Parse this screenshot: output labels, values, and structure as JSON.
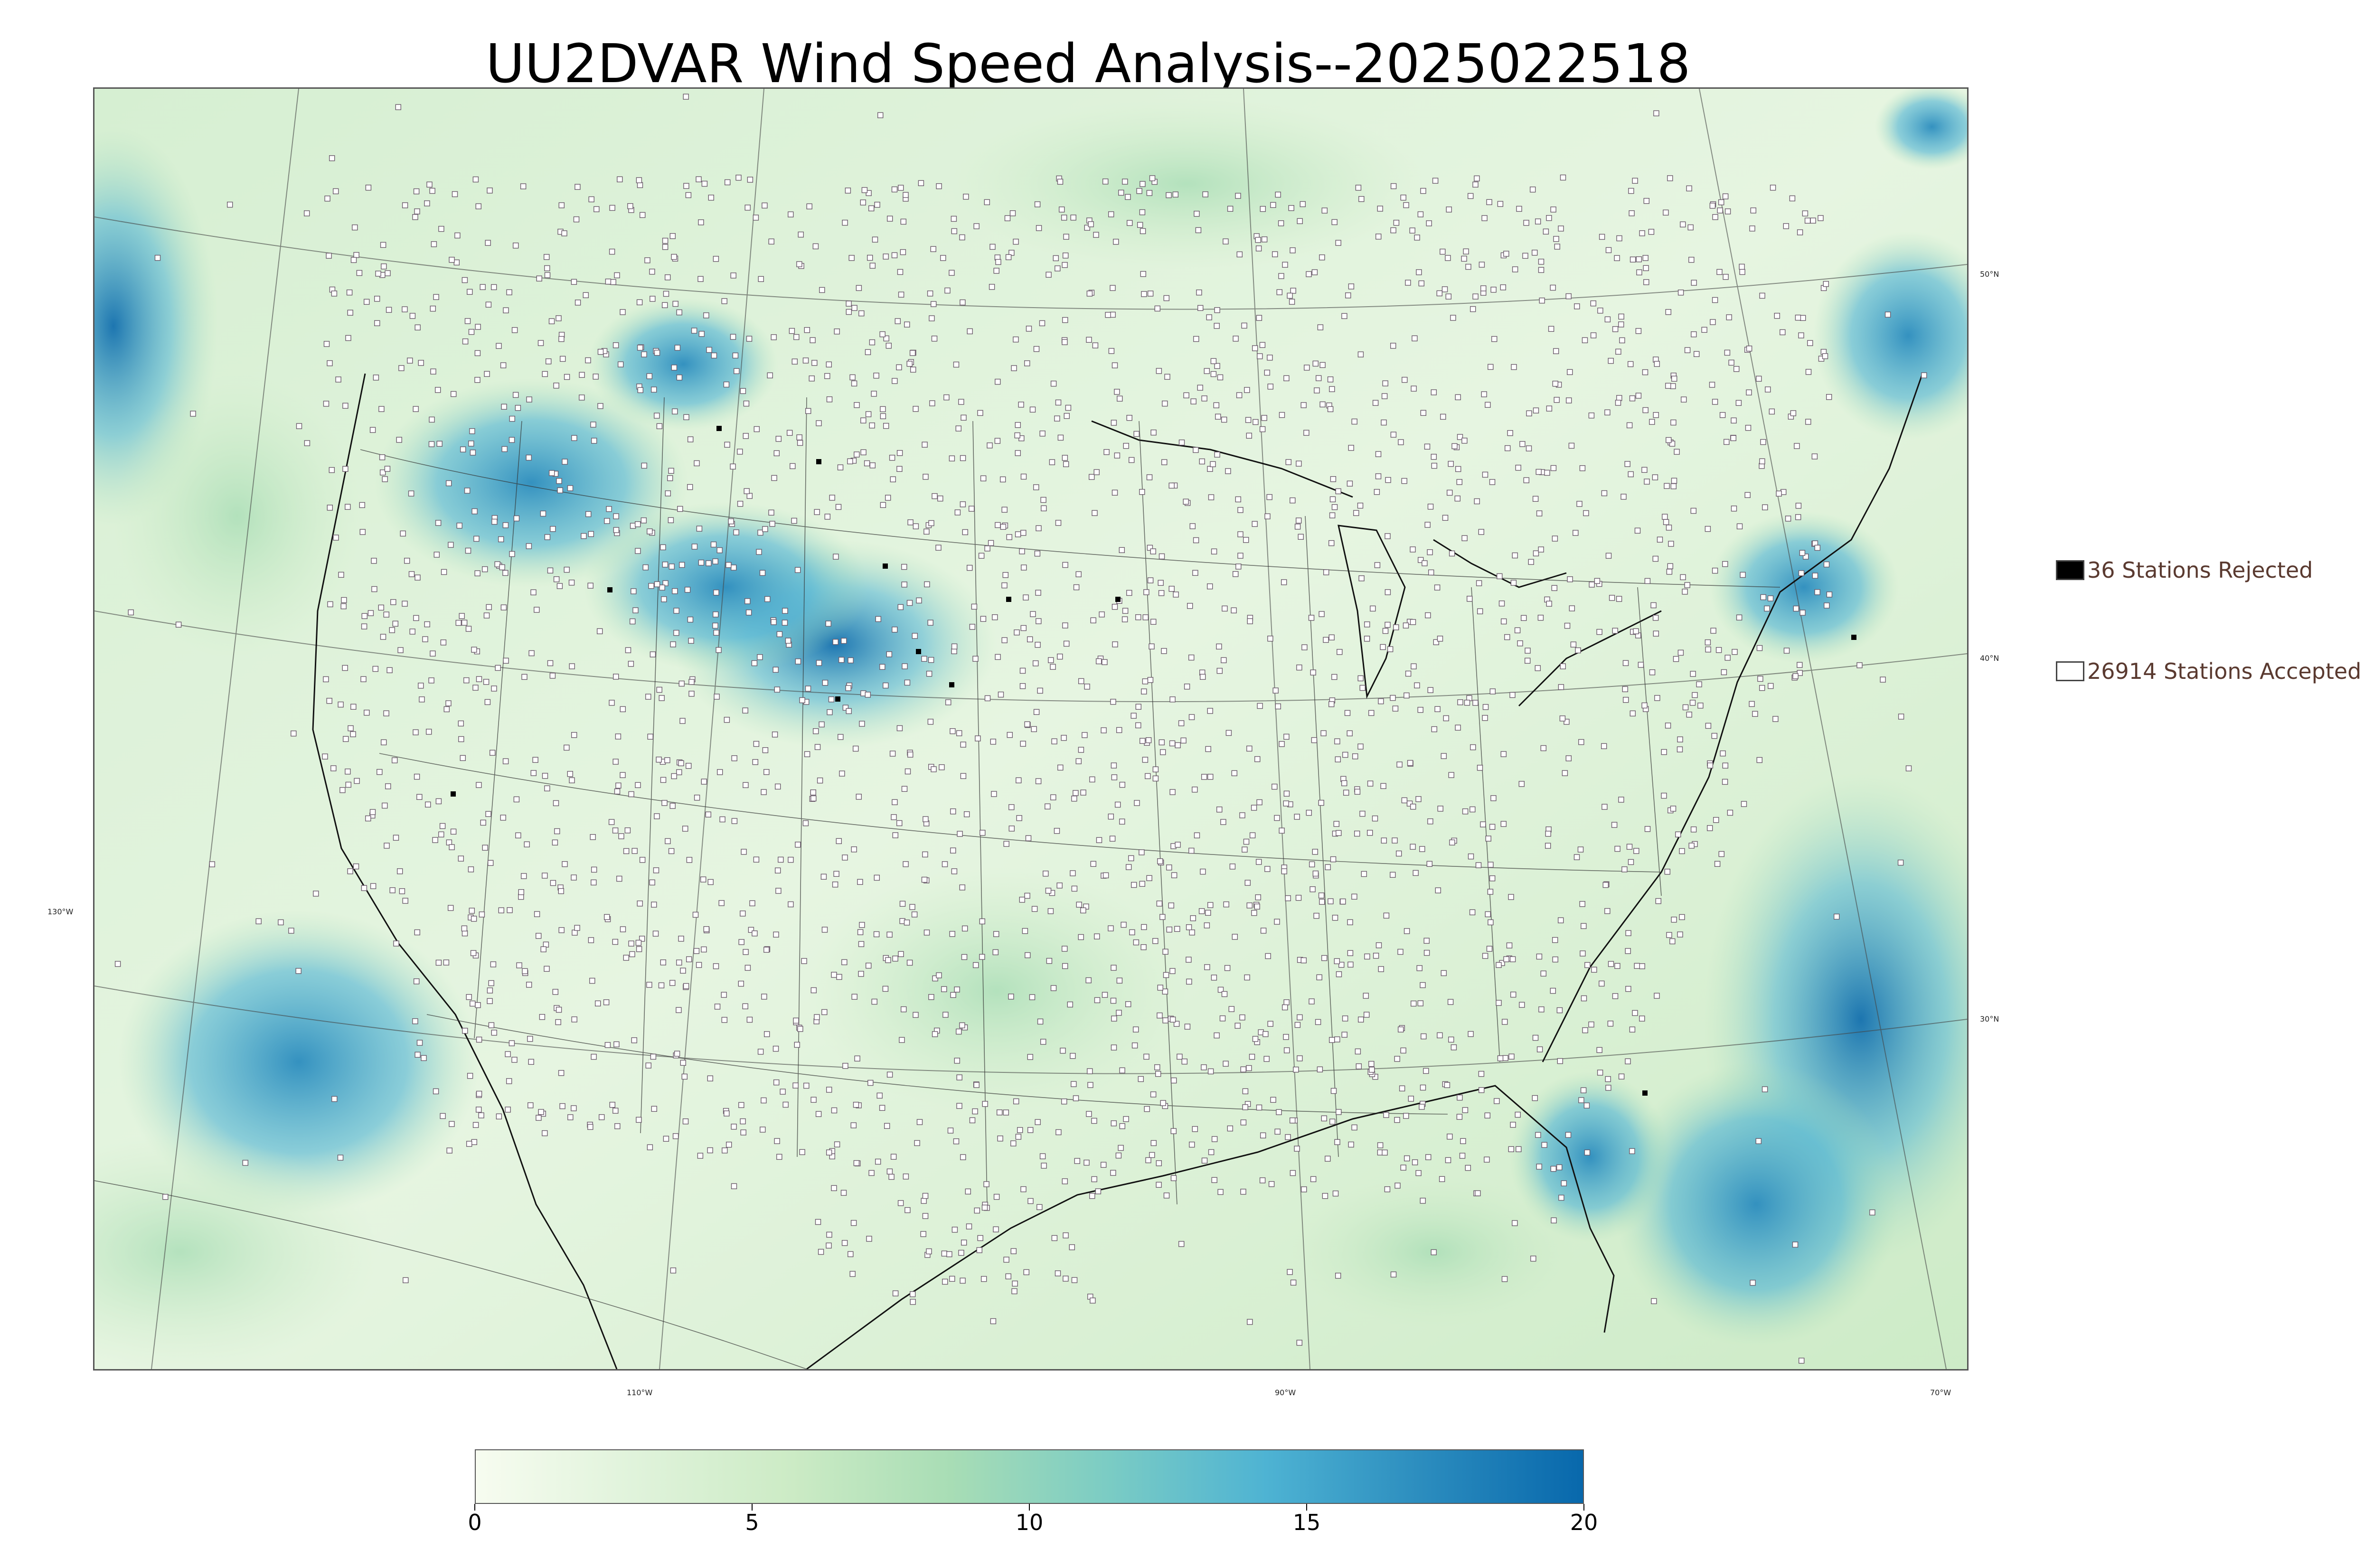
{
  "title": "UU2DVAR Wind Speed Analysis--2025022518",
  "map": {
    "lat_labels": [
      "50°N",
      "40°N",
      "30°N"
    ],
    "lon_labels": [
      "130°W",
      "110°W",
      "90°W",
      "70°W"
    ],
    "colormap": [
      "#f7fcf0",
      "#e0f3db",
      "#ccebc5",
      "#a8ddb5",
      "#7bccc4",
      "#4eb3d3",
      "#2b8cbe",
      "#0868ac"
    ]
  },
  "legend": {
    "rejected": {
      "label": "36 Stations Rejected",
      "color": "#000000"
    },
    "accepted": {
      "label": "26914 Stations Accepted",
      "color": "#ffffff"
    }
  },
  "colorbar": {
    "min": 0,
    "max": 20,
    "ticks": [
      "0",
      "5",
      "10",
      "15",
      "20"
    ]
  }
}
